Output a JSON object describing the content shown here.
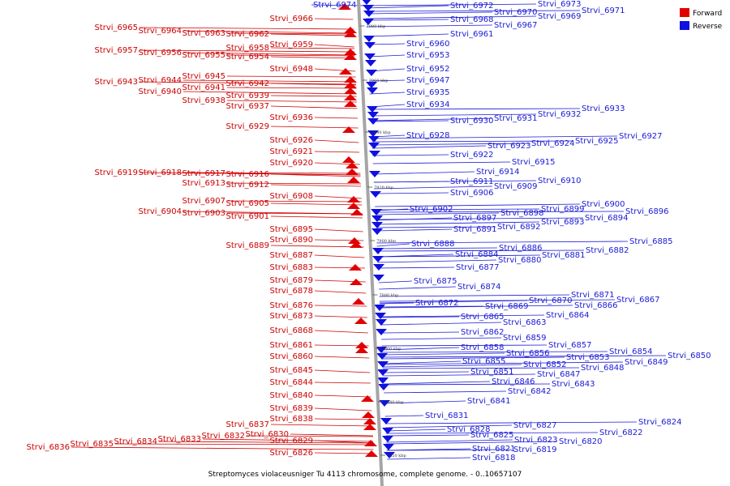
{
  "caption": "Streptomyces violaceusniger Tu 4113 chromosome, complete genome. - 0..10657107",
  "legend": {
    "forward": {
      "label": "Forward",
      "color": "#e00000"
    },
    "reverse": {
      "label": "Reverse",
      "color": "#1010e0"
    }
  },
  "colors": {
    "forward_label": "#cc0000",
    "reverse_label": "#1a1ad6",
    "axis": "#a0a0a0"
  },
  "kbp_marks": [
    "7980 kbp",
    "7960 kbp",
    "7940 kbp",
    "7920 kbp",
    "7900 kbp",
    "7880 kbp",
    "7860 kbp",
    "7840 kbp",
    "7820 kbp"
  ],
  "forward_labels": [
    "Strvi_6966",
    "Strvi_6965",
    "Strvi_6964",
    "Strvi_6963",
    "Strvi_6962",
    "Strvi_6959",
    "Strvi_6958",
    "Strvi_6957",
    "Strvi_6956",
    "Strvi_6955",
    "Strvi_6954",
    "Strvi_6948",
    "Strvi_6945",
    "Strvi_6944",
    "Strvi_6943",
    "Strvi_6941",
    "Strvi_6942",
    "Strvi_6940",
    "Strvi_6939",
    "Strvi_6938",
    "Strvi_6937",
    "Strvi_6936",
    "Strvi_6929",
    "Strvi_6926",
    "Strvi_6921",
    "Strvi_6920",
    "Strvi_6919",
    "Strvi_6918",
    "Strvi_6917",
    "Strvi_6916",
    "Strvi_6913",
    "Strvi_6912",
    "Strvi_6908",
    "Strvi_6907",
    "Strvi_6905",
    "Strvi_6904",
    "Strvi_6903",
    "Strvi_6901",
    "Strvi_6895",
    "Strvi_6890",
    "Strvi_6889",
    "Strvi_6887",
    "Strvi_6883",
    "Strvi_6879",
    "Strvi_6878",
    "Strvi_6876",
    "Strvi_6873",
    "Strvi_6868",
    "Strvi_6861",
    "Strvi_6860",
    "Strvi_6845",
    "Strvi_6844",
    "Strvi_6840",
    "Strvi_6839",
    "Strvi_6838",
    "Strvi_6837",
    "Strvi_6836",
    "Strvi_6835",
    "Strvi_6834",
    "Strvi_6833",
    "Strvi_6832",
    "Strvi_6830",
    "Strvi_6829",
    "Strvi_6826"
  ],
  "reverse_labels": [
    "Strvi_6974",
    "Strvi_6973",
    "Strvi_6972",
    "Strvi_6971",
    "Strvi_6970",
    "Strvi_6969",
    "Strvi_6968",
    "Strvi_6967",
    "Strvi_6961",
    "Strvi_6960",
    "Strvi_6953",
    "Strvi_6952",
    "Strvi_6947",
    "Strvi_6935",
    "Strvi_6934",
    "Strvi_6933",
    "Strvi_6932",
    "Strvi_6931",
    "Strvi_6930",
    "Strvi_6928",
    "Strvi_6927",
    "Strvi_6925",
    "Strvi_6924",
    "Strvi_6923",
    "Strvi_6922",
    "Strvi_6915",
    "Strvi_6914",
    "Strvi_6911",
    "Strvi_6910",
    "Strvi_6909",
    "Strvi_6906",
    "Strvi_6902",
    "Strvi_6900",
    "Strvi_6899",
    "Strvi_6898",
    "Strvi_6897",
    "Strvi_6896",
    "Strvi_6894",
    "Strvi_6893",
    "Strvi_6892",
    "Strvi_6891",
    "Strvi_6888",
    "Strvi_6886",
    "Strvi_6885",
    "Strvi_6884",
    "Strvi_6882",
    "Strvi_6881",
    "Strvi_6880",
    "Strvi_6877",
    "Strvi_6875",
    "Strvi_6874",
    "Strvi_6872",
    "Strvi_6871",
    "Strvi_6870",
    "Strvi_6869",
    "Strvi_6867",
    "Strvi_6866",
    "Strvi_6865",
    "Strvi_6864",
    "Strvi_6863",
    "Strvi_6862",
    "Strvi_6859",
    "Strvi_6858",
    "Strvi_6857",
    "Strvi_6856",
    "Strvi_6855",
    "Strvi_6854",
    "Strvi_6853",
    "Strvi_6852",
    "Strvi_6851",
    "Strvi_6850",
    "Strvi_6849",
    "Strvi_6848",
    "Strvi_6847",
    "Strvi_6846",
    "Strvi_6843",
    "Strvi_6842",
    "Strvi_6841",
    "Strvi_6831",
    "Strvi_6828",
    "Strvi_6827",
    "Strvi_6825",
    "Strvi_6824",
    "Strvi_6823",
    "Strvi_6822",
    "Strvi_6821",
    "Strvi_6820",
    "Strvi_6819",
    "Strvi_6818"
  ]
}
